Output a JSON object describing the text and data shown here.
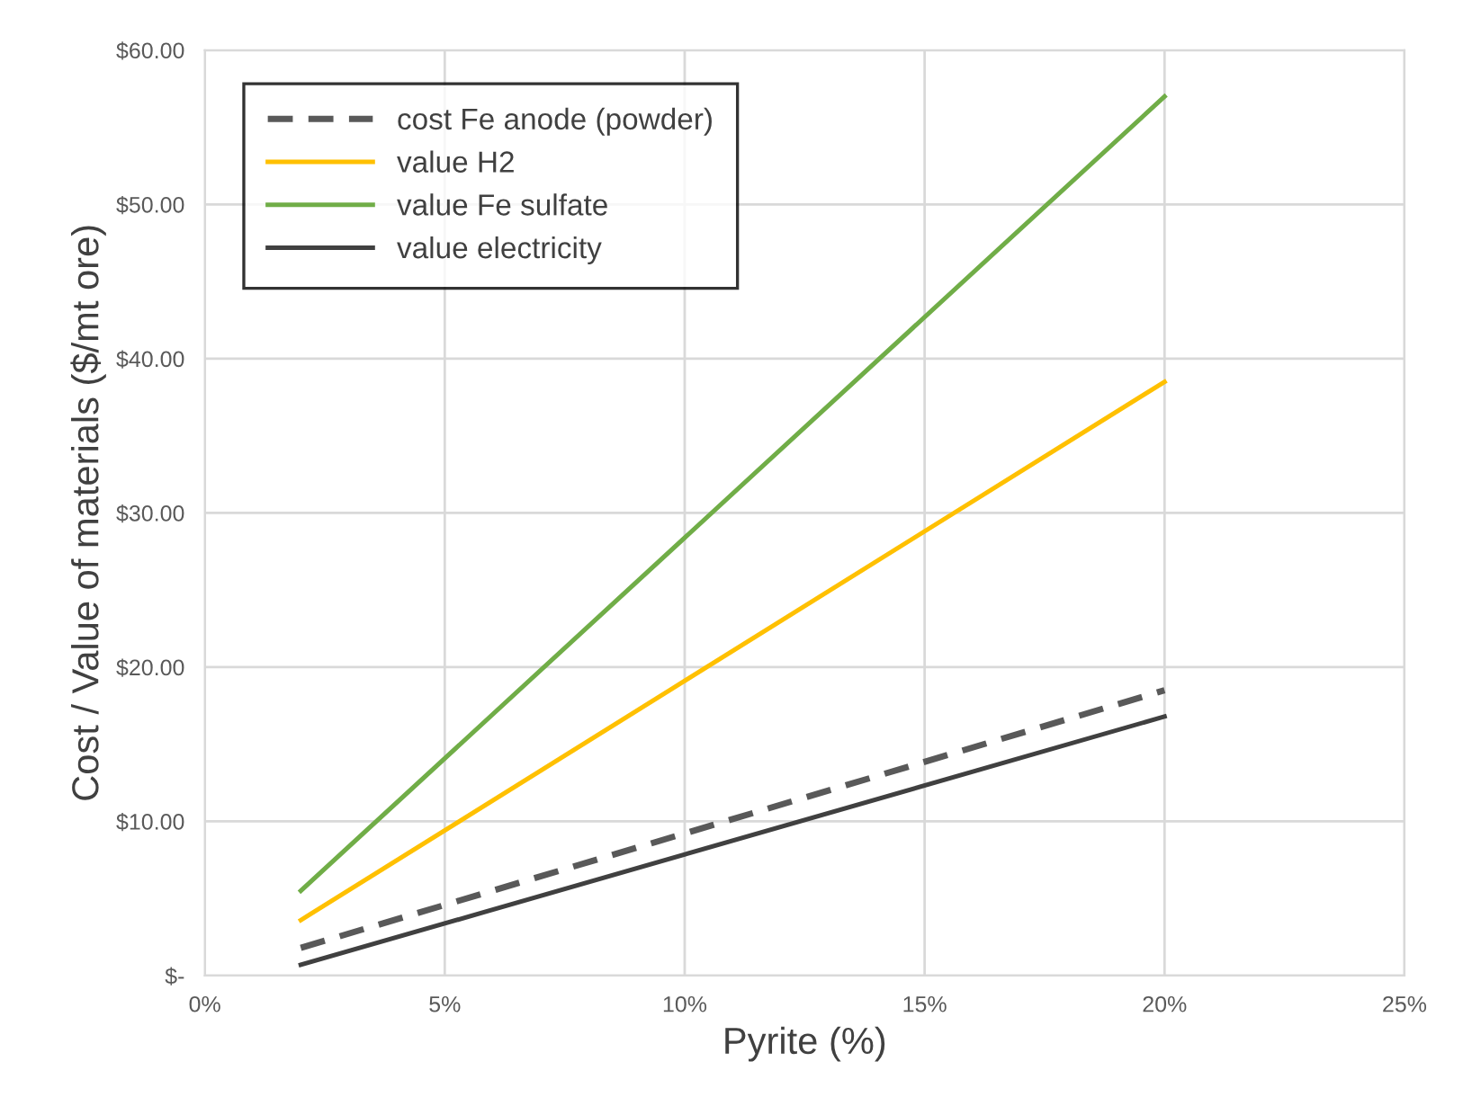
{
  "chart_data": {
    "type": "line",
    "xlabel": "Pyrite (%)",
    "ylabel": "Cost / Value of materials ($/mt ore)",
    "xlim": [
      0,
      25
    ],
    "xticks": [
      {
        "value": 0,
        "label": "0%"
      },
      {
        "value": 5,
        "label": "5%"
      },
      {
        "value": 10,
        "label": "10%"
      },
      {
        "value": 15,
        "label": "15%"
      },
      {
        "value": 20,
        "label": "20%"
      },
      {
        "value": 25,
        "label": "25%"
      }
    ],
    "ylim": [
      0,
      60
    ],
    "yticks": [
      {
        "value": 0,
        "label": "$-"
      },
      {
        "value": 10,
        "label": "$10.00"
      },
      {
        "value": 20,
        "label": "$20.00"
      },
      {
        "value": 30,
        "label": "$30.00"
      },
      {
        "value": 40,
        "label": "$40.00"
      },
      {
        "value": 50,
        "label": "$50.00"
      },
      {
        "value": 60,
        "label": "$60.00"
      }
    ],
    "x": [
      2,
      20
    ],
    "grid": true,
    "legend": "top left",
    "marker": "none",
    "series": [
      {
        "name": "cost Fe anode (powder)",
        "color": "#595959",
        "line_style": "dashed",
        "values": [
          1.8,
          18.5
        ]
      },
      {
        "name": "value H2",
        "color": "#ffc000",
        "line_style": "solid",
        "values": [
          3.6,
          38.5
        ]
      },
      {
        "name": "value Fe sulfate",
        "color": "#70ad47",
        "line_style": "solid",
        "values": [
          5.5,
          57.0
        ]
      },
      {
        "name": "value electricity",
        "color": "#404040",
        "line_style": "solid",
        "values": [
          0.7,
          16.8
        ]
      }
    ]
  }
}
